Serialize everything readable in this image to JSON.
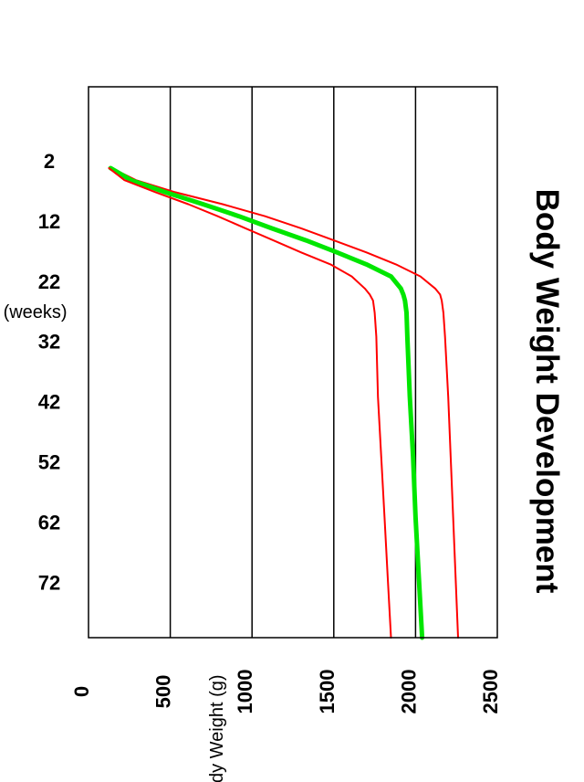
{
  "chart_data": {
    "type": "line",
    "title": "Body Weight Development",
    "xlabel": "Age (weeks)",
    "ylabel": "Body Weight (g)",
    "orientation": "rotated 90 degrees clockwise",
    "xlim": [
      2,
      80
    ],
    "ylim": [
      0,
      2500
    ],
    "x_ticks": [
      2,
      12,
      22,
      32,
      42,
      52,
      62,
      72
    ],
    "y_ticks": [
      0,
      500,
      1000,
      1500,
      2000,
      2500
    ],
    "grid": "horizontal lines at 500, 1000, 1500, 2000",
    "legend": "none",
    "colors": {
      "band": "#ff0000",
      "mean": "#00e600",
      "grid": "#000000",
      "frame": "#000000"
    },
    "x": [
      2,
      4,
      6,
      8,
      10,
      12,
      14,
      16,
      18,
      20,
      22,
      23,
      24,
      26,
      30,
      40,
      50,
      60,
      70,
      80
    ],
    "series": [
      {
        "role": "upper",
        "values": [
          140,
          290,
          530,
          820,
          1080,
          1300,
          1500,
          1700,
          1880,
          2030,
          2120,
          2150,
          2160,
          2170,
          2180,
          2200,
          2215,
          2230,
          2245,
          2260
        ]
      },
      {
        "role": "mean",
        "values": [
          135,
          260,
          470,
          700,
          920,
          1120,
          1330,
          1520,
          1700,
          1850,
          1910,
          1925,
          1935,
          1945,
          1950,
          1965,
          1985,
          2000,
          2020,
          2040
        ]
      },
      {
        "role": "lower",
        "values": [
          125,
          220,
          410,
          610,
          790,
          960,
          1130,
          1300,
          1480,
          1610,
          1690,
          1720,
          1740,
          1750,
          1760,
          1770,
          1790,
          1810,
          1830,
          1850
        ]
      }
    ]
  }
}
